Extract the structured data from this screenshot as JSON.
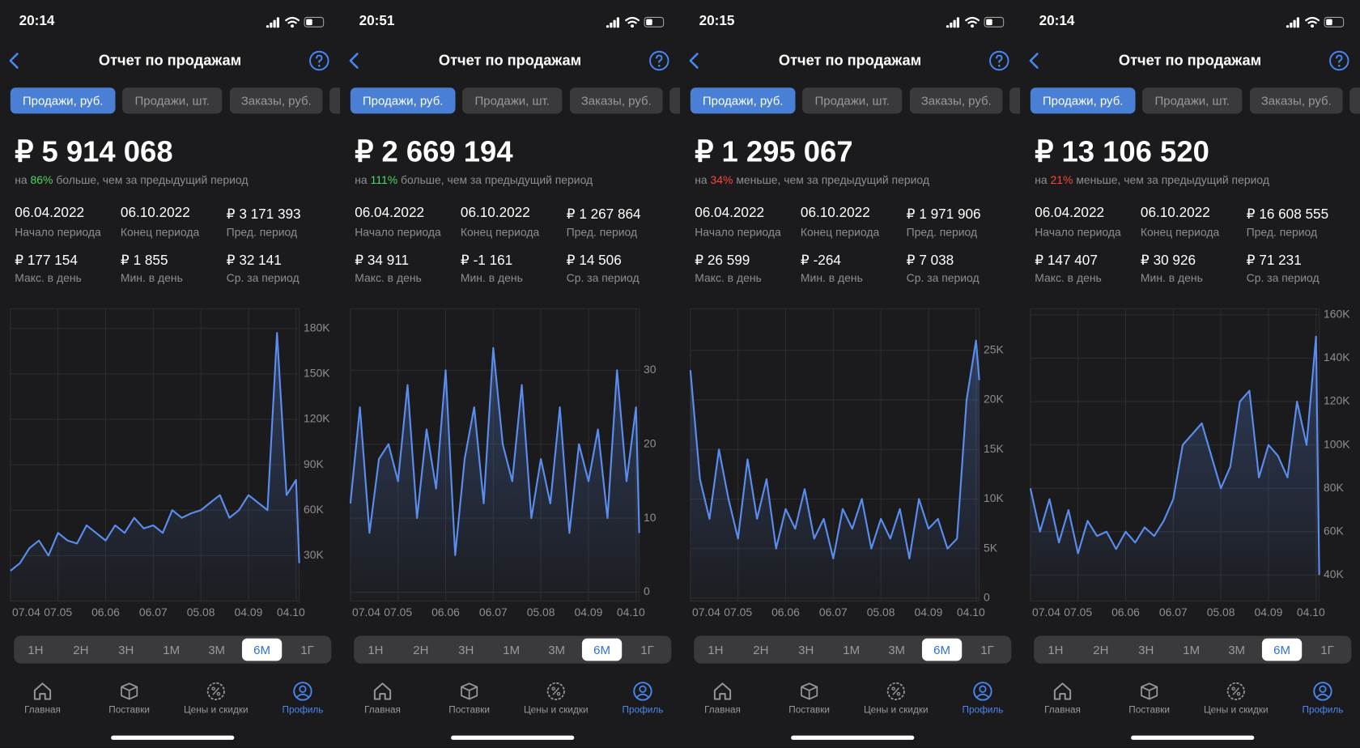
{
  "panels": [
    {
      "time": "20:14",
      "title": "Отчет по продажам",
      "tabs": [
        "Продажи, руб.",
        "Продажи, шт.",
        "Заказы, руб."
      ],
      "total": "₽ 5 914 068",
      "change": {
        "prefix": "на",
        "percent": "86%",
        "percent_color": "#4cd964",
        "rest": "больше, чем за предыдущий период"
      },
      "stats": [
        {
          "value": "06.04.2022",
          "label": "Начало периода"
        },
        {
          "value": "06.10.2022",
          "label": "Конец периода"
        },
        {
          "value": "₽  3 171 393",
          "label": "Пред. период"
        },
        {
          "value": "₽ 177 154",
          "label": "Макс. в день"
        },
        {
          "value": "₽ 1 855",
          "label": "Мин. в день"
        },
        {
          "value": "₽ 32 141",
          "label": "Ср. за период"
        }
      ],
      "periods": [
        "1Н",
        "2Н",
        "3Н",
        "1М",
        "3М",
        "6М",
        "1Г"
      ],
      "selected_period": "6М",
      "nav": [
        "Главная",
        "Поставки",
        "Цены и скидки",
        "Профиль"
      ]
    },
    {
      "time": "20:51",
      "title": "Отчет по продажам",
      "tabs": [
        "Продажи, руб.",
        "Продажи, шт.",
        "Заказы, руб."
      ],
      "total": "₽ 2 669 194",
      "change": {
        "prefix": "на",
        "percent": "111%",
        "percent_color": "#4cd964",
        "rest": "больше, чем за предыдущий период"
      },
      "stats": [
        {
          "value": "06.04.2022",
          "label": "Начало периода"
        },
        {
          "value": "06.10.2022",
          "label": "Конец периода"
        },
        {
          "value": "₽  1 267 864",
          "label": "Пред. период"
        },
        {
          "value": "₽ 34 911",
          "label": "Макс. в день"
        },
        {
          "value": "₽ -1 161",
          "label": "Мин. в день"
        },
        {
          "value": "₽ 14 506",
          "label": "Ср. за период"
        }
      ],
      "periods": [
        "1Н",
        "2Н",
        "3Н",
        "1М",
        "3М",
        "6М",
        "1Г"
      ],
      "selected_period": "6М",
      "nav": [
        "Главная",
        "Поставки",
        "Цены и скидки",
        "Профиль"
      ]
    },
    {
      "time": "20:15",
      "title": "Отчет по продажам",
      "tabs": [
        "Продажи, руб.",
        "Продажи, шт.",
        "Заказы, руб."
      ],
      "total": "₽ 1 295 067",
      "change": {
        "prefix": "на",
        "percent": "34%",
        "percent_color": "#ff453a",
        "rest": "меньше, чем за предыдущий период"
      },
      "stats": [
        {
          "value": "06.04.2022",
          "label": "Начало периода"
        },
        {
          "value": "06.10.2022",
          "label": "Конец периода"
        },
        {
          "value": "₽  1 971 906",
          "label": "Пред. период"
        },
        {
          "value": "₽ 26 599",
          "label": "Макс. в день"
        },
        {
          "value": "₽ -264",
          "label": "Мин. в день"
        },
        {
          "value": "₽ 7 038",
          "label": "Ср. за период"
        }
      ],
      "periods": [
        "1Н",
        "2Н",
        "3Н",
        "1М",
        "3М",
        "6М",
        "1Г"
      ],
      "selected_period": "6М",
      "nav": [
        "Главная",
        "Поставки",
        "Цены и скидки",
        "Профиль"
      ]
    },
    {
      "time": "20:14",
      "title": "Отчет по продажам",
      "tabs": [
        "Продажи, руб.",
        "Продажи, шт.",
        "Заказы, руб."
      ],
      "total": "₽ 13 106 520",
      "change": {
        "prefix": "на",
        "percent": "21%",
        "percent_color": "#ff453a",
        "rest": "меньше, чем за предыдущий период"
      },
      "stats": [
        {
          "value": "06.04.2022",
          "label": "Начало периода"
        },
        {
          "value": "06.10.2022",
          "label": "Конец периода"
        },
        {
          "value": "₽  16 608 555",
          "label": "Пред. период"
        },
        {
          "value": "₽ 147 407",
          "label": "Макс. в день"
        },
        {
          "value": "₽ 30 926",
          "label": "Мин. в день"
        },
        {
          "value": "₽ 71 231",
          "label": "Ср. за период"
        }
      ],
      "periods": [
        "1Н",
        "2Н",
        "3Н",
        "1М",
        "3М",
        "6М",
        "1Г"
      ],
      "selected_period": "6М",
      "nav": [
        "Главная",
        "Поставки",
        "Цены и скидки",
        "Профиль"
      ]
    }
  ],
  "chart_data": [
    {
      "type": "line",
      "color": "#5b8def",
      "grid": true,
      "x": [
        "07.04",
        "13.04",
        "19.04",
        "25.04",
        "01.05",
        "07.05",
        "13.05",
        "19.05",
        "25.05",
        "31.05",
        "06.06",
        "12.06",
        "18.06",
        "24.06",
        "30.06",
        "06.07",
        "12.07",
        "18.07",
        "24.07",
        "30.07",
        "05.08",
        "11.08",
        "17.08",
        "23.08",
        "29.08",
        "04.09",
        "10.09",
        "16.09",
        "22.09",
        "28.09",
        "04.10",
        "06.10"
      ],
      "xticks": [
        "07.04",
        "07.05",
        "06.06",
        "06.07",
        "05.08",
        "04.09",
        "04.10"
      ],
      "values": [
        20000,
        25000,
        35000,
        40000,
        30000,
        45000,
        40000,
        38000,
        50000,
        45000,
        40000,
        50000,
        45000,
        55000,
        48000,
        50000,
        45000,
        60000,
        55000,
        58000,
        60000,
        65000,
        70000,
        55000,
        60000,
        70000,
        65000,
        60000,
        177000,
        70000,
        80000,
        25000
      ],
      "ylim": [
        0,
        193000
      ],
      "yticks": [
        {
          "value": 30000,
          "label": "30K"
        },
        {
          "value": 60000,
          "label": "60K"
        },
        {
          "value": 90000,
          "label": "90K"
        },
        {
          "value": 120000,
          "label": "120K"
        },
        {
          "value": 150000,
          "label": "150K"
        },
        {
          "value": 180000,
          "label": "180K"
        }
      ]
    },
    {
      "type": "line",
      "color": "#5b8def",
      "grid": true,
      "x": [
        "07.04",
        "13.04",
        "19.04",
        "25.04",
        "01.05",
        "07.05",
        "13.05",
        "19.05",
        "25.05",
        "31.05",
        "06.06",
        "12.06",
        "18.06",
        "24.06",
        "30.06",
        "06.07",
        "12.07",
        "18.07",
        "24.07",
        "30.07",
        "05.08",
        "11.08",
        "17.08",
        "23.08",
        "29.08",
        "04.09",
        "10.09",
        "16.09",
        "22.09",
        "28.09",
        "04.10",
        "06.10"
      ],
      "xticks": [
        "07.04",
        "07.05",
        "06.06",
        "06.07",
        "05.08",
        "04.09",
        "04.10"
      ],
      "values": [
        12,
        25,
        8,
        18,
        20,
        15,
        28,
        10,
        22,
        14,
        30,
        5,
        18,
        25,
        12,
        33,
        20,
        15,
        28,
        10,
        18,
        12,
        25,
        8,
        20,
        15,
        22,
        10,
        30,
        15,
        25,
        8
      ],
      "ylim": [
        -1.2,
        38.3
      ],
      "yticks": [
        0,
        10,
        20,
        30
      ]
    },
    {
      "type": "line",
      "color": "#5b8def",
      "grid": true,
      "x": [
        "07.04",
        "13.04",
        "19.04",
        "25.04",
        "01.05",
        "07.05",
        "13.05",
        "19.05",
        "25.05",
        "31.05",
        "06.06",
        "12.06",
        "18.06",
        "24.06",
        "30.06",
        "06.07",
        "12.07",
        "18.07",
        "24.07",
        "30.07",
        "05.08",
        "11.08",
        "17.08",
        "23.08",
        "29.08",
        "04.09",
        "10.09",
        "16.09",
        "22.09",
        "28.09",
        "04.10",
        "06.10"
      ],
      "xticks": [
        "07.04",
        "07.05",
        "06.06",
        "06.07",
        "05.08",
        "04.09",
        "04.10"
      ],
      "values": [
        23000,
        12000,
        8000,
        15000,
        10000,
        6000,
        14000,
        8000,
        12000,
        5000,
        9000,
        7000,
        11000,
        6000,
        8000,
        4000,
        9000,
        7000,
        10000,
        5000,
        8000,
        6000,
        9000,
        4000,
        10000,
        7000,
        8000,
        5000,
        6000,
        20000,
        26000,
        22000
      ],
      "ylim": [
        -300,
        29200
      ],
      "yticks": [
        0,
        {
          "value": 5000,
          "label": "5K"
        },
        {
          "value": 10000,
          "label": "10K"
        },
        {
          "value": 15000,
          "label": "15K"
        },
        {
          "value": 20000,
          "label": "20K"
        },
        {
          "value": 25000,
          "label": "25K"
        }
      ]
    },
    {
      "type": "line",
      "color": "#5b8def",
      "grid": true,
      "x": [
        "07.04",
        "13.04",
        "19.04",
        "25.04",
        "01.05",
        "07.05",
        "13.05",
        "19.05",
        "25.05",
        "31.05",
        "06.06",
        "12.06",
        "18.06",
        "24.06",
        "30.06",
        "06.07",
        "12.07",
        "18.07",
        "24.07",
        "30.07",
        "05.08",
        "11.08",
        "17.08",
        "23.08",
        "29.08",
        "04.09",
        "10.09",
        "16.09",
        "22.09",
        "28.09",
        "04.10",
        "06.10"
      ],
      "xticks": [
        "07.04",
        "07.05",
        "06.06",
        "06.07",
        "05.08",
        "04.09",
        "04.10"
      ],
      "values": [
        80000,
        60000,
        75000,
        55000,
        70000,
        50000,
        65000,
        58000,
        60000,
        52000,
        60000,
        55000,
        62000,
        58000,
        65000,
        75000,
        100000,
        105000,
        110000,
        95000,
        80000,
        90000,
        120000,
        125000,
        85000,
        100000,
        95000,
        85000,
        120000,
        100000,
        150000,
        40000
      ],
      "ylim": [
        28000,
        162800
      ],
      "yticks": [
        {
          "value": 40000,
          "label": "40K"
        },
        {
          "value": 60000,
          "label": "60K"
        },
        {
          "value": 80000,
          "label": "80K"
        },
        {
          "value": 100000,
          "label": "100K"
        },
        {
          "value": 120000,
          "label": "120K"
        },
        {
          "value": 140000,
          "label": "140K"
        },
        {
          "value": 160000,
          "label": "160K"
        }
      ]
    }
  ]
}
